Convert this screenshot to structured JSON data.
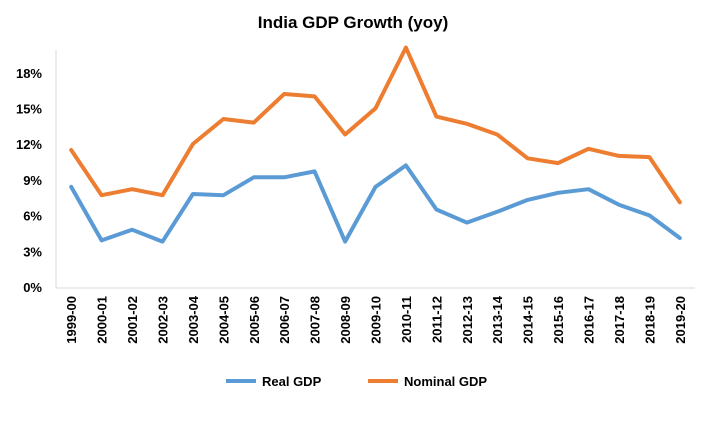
{
  "chart_data": {
    "type": "line",
    "title": "India GDP Growth (yoy)",
    "xlabel": "",
    "ylabel": "",
    "categories": [
      "1999-00",
      "2000-01",
      "2001-02",
      "2002-03",
      "2003-04",
      "2004-05",
      "2005-06",
      "2006-07",
      "2007-08",
      "2008-09",
      "2009-10",
      "2010-11",
      "2011-12",
      "2012-13",
      "2013-14",
      "2014-15",
      "2015-16",
      "2016-17",
      "2017-18",
      "2018-19",
      "2019-20"
    ],
    "y_tick_labels": [
      "0%",
      "3%",
      "6%",
      "9%",
      "12%",
      "15%",
      "18%"
    ],
    "ylim": [
      0,
      20
    ],
    "grid": false,
    "legend_position": "bottom",
    "series": [
      {
        "name": "Real GDP",
        "color": "#5b9bd5",
        "values": [
          8.5,
          4.0,
          4.9,
          3.9,
          7.9,
          7.8,
          9.3,
          9.3,
          9.8,
          3.9,
          8.5,
          10.3,
          6.6,
          5.5,
          6.4,
          7.4,
          8.0,
          8.3,
          7.0,
          6.1,
          4.2
        ]
      },
      {
        "name": "Nominal GDP",
        "color": "#ed7d31",
        "values": [
          11.6,
          7.8,
          8.3,
          7.8,
          12.1,
          14.2,
          13.9,
          16.3,
          16.1,
          12.9,
          15.1,
          20.2,
          14.4,
          13.8,
          12.9,
          10.9,
          10.5,
          11.7,
          11.1,
          11.0,
          7.2
        ]
      }
    ]
  }
}
